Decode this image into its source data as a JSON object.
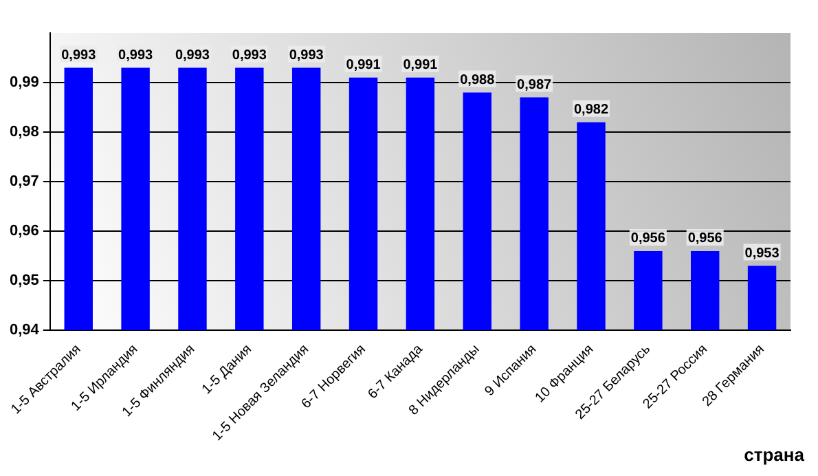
{
  "chart_data": {
    "type": "bar",
    "xlabel": "страна",
    "categories": [
      "1-5 Австралия",
      "1-5 Ирландия",
      "1-5 Финляндия",
      "1-5 Дания",
      "1-5 Новая Зеландия",
      "6-7 Норвегия",
      "6-7 Канада",
      "8 Нидерланды",
      "9 Испания",
      "10 Франция",
      "25-27 Беларусь",
      "25-27 Россия",
      "28 Германия"
    ],
    "values": [
      0.993,
      0.993,
      0.993,
      0.993,
      0.993,
      0.991,
      0.991,
      0.988,
      0.987,
      0.982,
      0.956,
      0.956,
      0.953
    ],
    "value_labels": [
      "0,993",
      "0,993",
      "0,993",
      "0,993",
      "0,993",
      "0,991",
      "0,991",
      "0,988",
      "0,987",
      "0,982",
      "0,956",
      "0,956",
      "0,953"
    ],
    "color": "#0000ff",
    "ylim": [
      0.94,
      1.0
    ],
    "yticks": [
      {
        "value": 0.94,
        "label": "0,94"
      },
      {
        "value": 0.95,
        "label": "0,95"
      },
      {
        "value": 0.96,
        "label": "0,96"
      },
      {
        "value": 0.97,
        "label": "0,97"
      },
      {
        "value": 0.98,
        "label": "0,98"
      },
      {
        "value": 0.99,
        "label": "0,99"
      }
    ],
    "grid": "y",
    "legend": false
  }
}
